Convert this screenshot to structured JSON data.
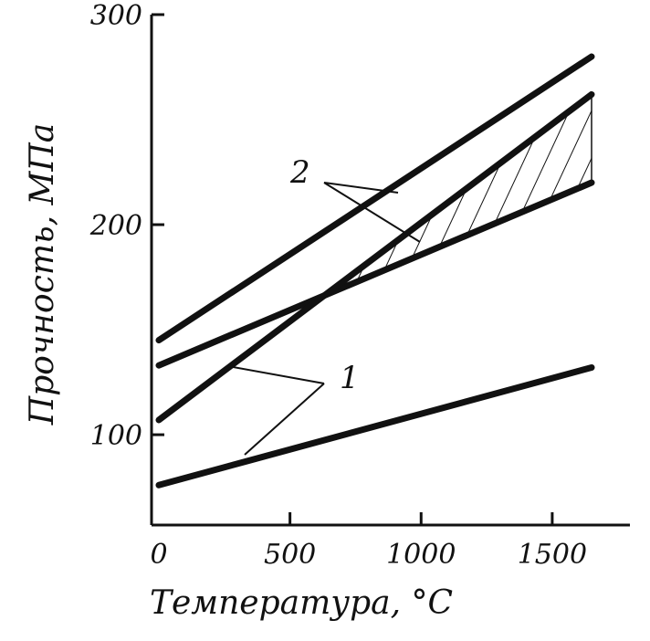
{
  "chart_data": {
    "type": "line",
    "ylabel": "Прочность, МПа",
    "xlabel": "Температура, °C",
    "xlim": [
      0,
      1650
    ],
    "ylim": [
      57,
      300
    ],
    "x_ticks": [
      0,
      500,
      1000,
      1500
    ],
    "x_tick_labels": [
      "0",
      "500",
      "1000",
      "1500"
    ],
    "y_ticks": [
      100,
      200,
      300
    ],
    "y_tick_labels": [
      "100",
      "200",
      "300"
    ],
    "grid": false,
    "legend": "none",
    "series": [
      {
        "x": [
          0,
          1650
        ],
        "y": [
          145,
          280
        ]
      },
      {
        "x": [
          0,
          1650
        ],
        "y": [
          133,
          220
        ]
      },
      {
        "x": [
          0,
          1650
        ],
        "y": [
          107,
          262
        ]
      },
      {
        "x": [
          0,
          1650
        ],
        "y": [
          76,
          132
        ]
      }
    ],
    "hatched_region": {
      "between_series": [
        1,
        2
      ],
      "x_start": 650,
      "x_end": 1650
    },
    "annotations": [
      {
        "text": "1",
        "series_refs": [
          2,
          3
        ]
      },
      {
        "text": "2",
        "series_refs": [
          0,
          2
        ]
      }
    ],
    "line_color": "#111111"
  }
}
